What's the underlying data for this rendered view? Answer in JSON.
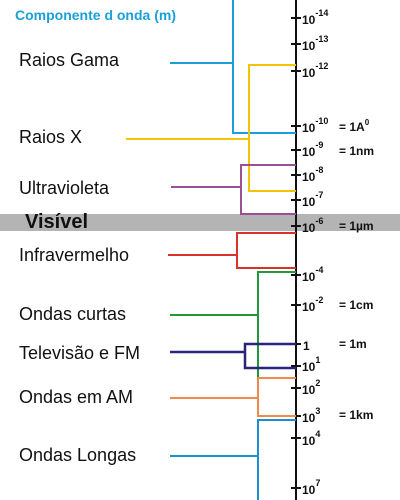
{
  "title": "Componente d onda (m)",
  "visible_label": "Visível",
  "bands": [
    {
      "id": "gamma",
      "label": "Raios Gama",
      "color": "#1a9fd9"
    },
    {
      "id": "xray",
      "label": "Raios X",
      "color": "#f5c400"
    },
    {
      "id": "uv",
      "label": "Ultravioleta",
      "color": "#9b4f96"
    },
    {
      "id": "ir",
      "label": "Infravermelho",
      "color": "#d9322a"
    },
    {
      "id": "shortwave",
      "label": "Ondas curtas",
      "color": "#1e9a3c"
    },
    {
      "id": "tvfm",
      "label": "Televisão e FM",
      "color": "#2b237a"
    },
    {
      "id": "am",
      "label": "Ondas em AM",
      "color": "#f08a4b"
    },
    {
      "id": "longwave",
      "label": "Ondas Longas",
      "color": "#1a8fd4"
    }
  ],
  "ticks": [
    {
      "base": "10",
      "exp": "-14"
    },
    {
      "base": "10",
      "exp": "-13"
    },
    {
      "base": "10",
      "exp": "-12"
    },
    {
      "base": "10",
      "exp": "-10"
    },
    {
      "base": "10",
      "exp": "-9"
    },
    {
      "base": "10",
      "exp": "-8"
    },
    {
      "base": "10",
      "exp": "-7"
    },
    {
      "base": "10",
      "exp": "-6"
    },
    {
      "base": "10",
      "exp": "-4"
    },
    {
      "base": "10",
      "exp": "-2"
    },
    {
      "base": "1",
      "exp": ""
    },
    {
      "base": "10",
      "exp": "1"
    },
    {
      "base": "10",
      "exp": "2"
    },
    {
      "base": "10",
      "exp": "3"
    },
    {
      "base": "10",
      "exp": "4"
    },
    {
      "base": "10",
      "exp": "7"
    }
  ],
  "equivalences": [
    {
      "text": "= 1A",
      "exp": "0"
    },
    {
      "text": "= 1nm",
      "exp": ""
    },
    {
      "text": "= 1µm",
      "exp": ""
    },
    {
      "text": "= 1cm",
      "exp": ""
    },
    {
      "text": "= 1m",
      "exp": ""
    },
    {
      "text": "= 1km",
      "exp": ""
    }
  ],
  "colors": {
    "axis": "#111111",
    "visible_band": "#b4b4b4",
    "title": "#1a9fd9"
  }
}
